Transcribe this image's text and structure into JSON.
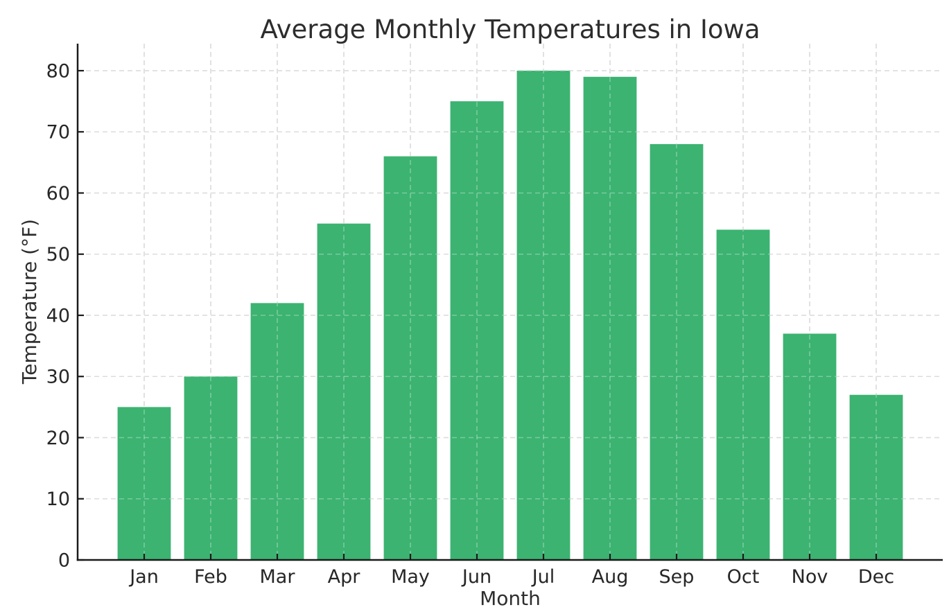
{
  "chart_data": {
    "type": "bar",
    "title": "Average Monthly Temperatures in Iowa",
    "xlabel": "Month",
    "ylabel": "Temperature (°F)",
    "categories": [
      "Jan",
      "Feb",
      "Mar",
      "Apr",
      "May",
      "Jun",
      "Jul",
      "Aug",
      "Sep",
      "Oct",
      "Nov",
      "Dec"
    ],
    "values": [
      25,
      30,
      42,
      55,
      66,
      75,
      80,
      79,
      68,
      54,
      37,
      27
    ],
    "yticks": [
      0,
      10,
      20,
      30,
      40,
      50,
      60,
      70,
      80
    ],
    "ylim": [
      0,
      84.4
    ],
    "bar_width_fraction": 0.8,
    "grid": true,
    "grid_style": "dashed",
    "legend": null,
    "colors": {
      "bar": "#3cb371",
      "grid": "#cccccc",
      "axis": "#1a1a1a",
      "text": "#2d2d2d",
      "background": "#ffffff"
    }
  }
}
